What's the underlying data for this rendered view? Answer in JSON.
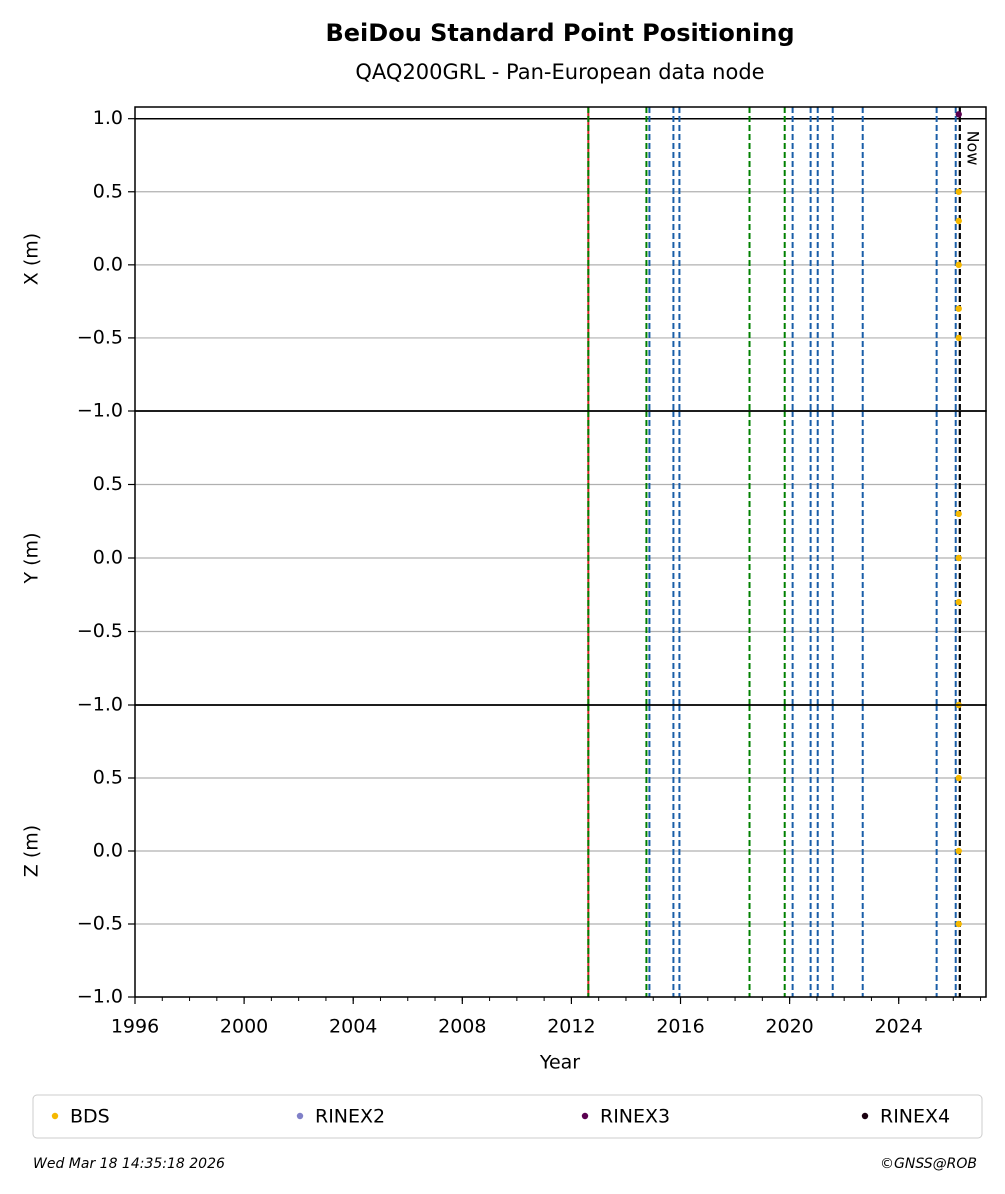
{
  "chart_data": {
    "type": "scatter",
    "title": "BeiDou Standard Point Positioning",
    "subtitle": "QAQ200GRL - Pan-European data node",
    "xlabel": "Year",
    "xlim": [
      1996,
      2027.2
    ],
    "xticks": [
      1996,
      2000,
      2004,
      2008,
      2012,
      2016,
      2020,
      2024
    ],
    "grid": true,
    "legend_position": "bottom",
    "series": [
      {
        "name": "BDS",
        "color": "#f5b800"
      },
      {
        "name": "RINEX2",
        "color": "#8080c8"
      },
      {
        "name": "RINEX3",
        "color": "#5a0050"
      },
      {
        "name": "RINEX4",
        "color": "#1a0010"
      }
    ],
    "panels": [
      {
        "ylabel": "X (m)",
        "ylim": [
          -1,
          1.08
        ],
        "hlines": [
          1
        ],
        "yticks": [
          {
            "value": -1,
            "label": "−1.0"
          },
          {
            "value": -0.5,
            "label": "−0.5"
          },
          {
            "value": 0,
            "label": "0.0"
          },
          0.5,
          {
            "value": 1,
            "label": "1.0"
          }
        ],
        "series": [
          {
            "x": [
              2026.2,
              2026.2,
              2026.2,
              2026.2,
              2026.2
            ],
            "values": [
              0.5,
              0.3,
              0.0,
              -0.3,
              -0.5
            ]
          },
          {
            "x": [],
            "values": []
          },
          {
            "x": [
              2026.2
            ],
            "values": [
              1.03
            ]
          },
          {
            "x": [],
            "values": []
          }
        ]
      },
      {
        "ylabel": "Y (m)",
        "ylim": [
          -1,
          1
        ],
        "yticks": [
          {
            "value": -1,
            "label": "−1.0"
          },
          {
            "value": -0.5,
            "label": "−0.5"
          },
          {
            "value": 0,
            "label": "0.0"
          },
          0.5
        ],
        "series": [
          {
            "x": [
              2026.2,
              2026.2,
              2026.2
            ],
            "values": [
              0.3,
              0.0,
              -0.3
            ]
          },
          {
            "x": [],
            "values": []
          },
          {
            "x": [],
            "values": []
          },
          {
            "x": [],
            "values": []
          }
        ]
      },
      {
        "ylabel": "Z (m)",
        "ylim": [
          -1,
          1
        ],
        "yticks": [
          {
            "value": -1,
            "label": "−1.0"
          },
          {
            "value": -0.5,
            "label": "−0.5"
          },
          {
            "value": 0,
            "label": "0.0"
          },
          0.5
        ],
        "series": [
          {
            "x": [
              2026.2,
              2026.2,
              2026.2,
              2026.2
            ],
            "values": [
              1.0,
              0.5,
              0.0,
              -0.5
            ]
          },
          {
            "x": [],
            "values": []
          },
          {
            "x": [],
            "values": []
          },
          {
            "x": [],
            "values": []
          }
        ]
      }
    ],
    "vlines": [
      {
        "x": 2012.62,
        "color": "#d62728",
        "style": "solid"
      },
      {
        "x": 2012.62,
        "color": "#008000",
        "style": "dashed"
      },
      {
        "x": 2014.75,
        "color": "#008000",
        "style": "dashed"
      },
      {
        "x": 2014.86,
        "color": "#1a5ea8",
        "style": "dashed"
      },
      {
        "x": 2015.74,
        "color": "#1a5ea8",
        "style": "dashed"
      },
      {
        "x": 2015.96,
        "color": "#1a5ea8",
        "style": "dashed"
      },
      {
        "x": 2018.53,
        "color": "#008000",
        "style": "dashed"
      },
      {
        "x": 2019.82,
        "color": "#008000",
        "style": "dashed"
      },
      {
        "x": 2020.11,
        "color": "#1a5ea8",
        "style": "dashed"
      },
      {
        "x": 2020.77,
        "color": "#1a5ea8",
        "style": "dashed"
      },
      {
        "x": 2021.03,
        "color": "#1a5ea8",
        "style": "dashed"
      },
      {
        "x": 2021.58,
        "color": "#1a5ea8",
        "style": "dashed"
      },
      {
        "x": 2022.68,
        "color": "#1a5ea8",
        "style": "dashed"
      },
      {
        "x": 2025.39,
        "color": "#1a5ea8",
        "style": "dashed"
      },
      {
        "x": 2026.09,
        "color": "#1a5ea8",
        "style": "dashed"
      }
    ],
    "now": {
      "x": 2026.24,
      "label": "Now",
      "color": "#000000"
    },
    "footer_left": "Wed Mar 18 14:35:18 2026",
    "footer_right": "©GNSS@ROB"
  }
}
